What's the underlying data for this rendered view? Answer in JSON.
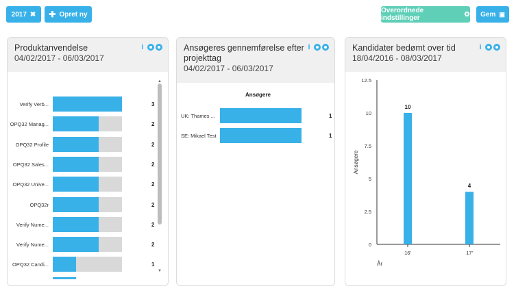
{
  "toolbar": {
    "year_label": "2017",
    "year_close_icon": "close-icon",
    "new_label": "Opret ny",
    "new_icon": "plus-icon",
    "settings_label": "Overordnede indstillinger",
    "settings_icon": "gear-icon",
    "save_label": "Gem",
    "save_icon": "floppy-icon"
  },
  "colors": {
    "accent": "#38b1e9",
    "green": "#5fcfb7",
    "track": "#d9d9d9"
  },
  "panels": [
    {
      "title": "Produktanvendelse",
      "date": "04/02/2017 - 06/03/2017",
      "rows": [
        {
          "label": "Verify Verb...",
          "value": "3",
          "fraction": 1.0
        },
        {
          "label": "OPQ32 Manag...",
          "value": "2",
          "fraction": 0.667
        },
        {
          "label": "OPQ32 Profile",
          "value": "2",
          "fraction": 0.667
        },
        {
          "label": "OPQ32 Sales...",
          "value": "2",
          "fraction": 0.667
        },
        {
          "label": "OPQ32 Unive...",
          "value": "2",
          "fraction": 0.667
        },
        {
          "label": "OPQ32r",
          "value": "2",
          "fraction": 0.667
        },
        {
          "label": "Verify Nume...",
          "value": "2",
          "fraction": 0.667
        },
        {
          "label": "Verify Nume...",
          "value": "2",
          "fraction": 0.667
        },
        {
          "label": "OPQ32 Candi...",
          "value": "1",
          "fraction": 0.333
        }
      ]
    },
    {
      "title": "Ansøgeres gennemførelse efter projekttag",
      "title_line1": "Ansøgeres gennemførelse efter",
      "title_line2": "projekttag",
      "date": "04/02/2017 - 06/03/2017",
      "column_header": "Ansøgere",
      "rows": [
        {
          "label": "UK: Thames ...",
          "value": "1",
          "fraction": 1.0
        },
        {
          "label": "SE: Mikael Test",
          "value": "1",
          "fraction": 1.0
        }
      ]
    },
    {
      "title": "Kandidater bedømt over tid",
      "date": "18/04/2016 - 08/03/2017"
    }
  ],
  "chart_data": {
    "type": "bar",
    "categories": [
      "16'",
      "17'"
    ],
    "values": [
      10,
      4
    ],
    "xlabel": "År",
    "ylabel": "Ansøgere",
    "ylim": [
      0,
      12.5
    ],
    "yticks": [
      "0",
      "2.5",
      "5",
      "7.5",
      "10",
      "12.5"
    ]
  }
}
